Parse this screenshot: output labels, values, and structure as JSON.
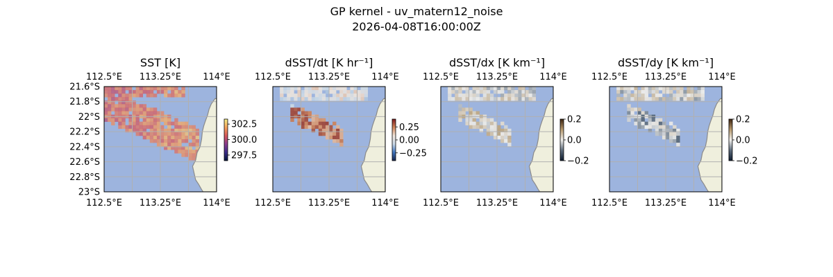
{
  "figure": {
    "suptitle": "GP kernel - uv_matern12_noise",
    "timestamp": "2026-04-08T16:00:00Z"
  },
  "colors": {
    "ocean": "#9db4de",
    "land": "#efefdd",
    "coast": "#8a8a8a",
    "grid": "#b0b0b0"
  },
  "chart_data": [
    {
      "type": "heatmap",
      "title": "SST [K]",
      "x_ticks": [
        "112.5°E",
        "113.25°E",
        "114°E"
      ],
      "x_values": [
        112.5,
        113.25,
        114.0
      ],
      "y_ticks": [
        "21.6°S",
        "21.8°S",
        "22°S",
        "22.2°S",
        "22.4°S",
        "22.6°S",
        "22.8°S",
        "23°S"
      ],
      "y_values": [
        -21.6,
        -21.8,
        -22.0,
        -22.2,
        -22.4,
        -22.6,
        -22.8,
        -23.0
      ],
      "xlim": [
        112.5,
        114.0
      ],
      "ylim": [
        -23.0,
        -21.6
      ],
      "colorbar": {
        "ticks": [
          "302.5",
          "300.0",
          "297.5"
        ],
        "values": [
          302.5,
          300.0,
          297.5
        ],
        "range": [
          296.6,
          303.3
        ],
        "cmap": "thermal"
      },
      "lat_labels_visible": true,
      "grid": true
    },
    {
      "type": "heatmap",
      "title": "dSST/dt [K hr⁻¹]",
      "x_ticks": [
        "112.5°E",
        "113.25°E",
        "114°E"
      ],
      "x_values": [
        112.5,
        113.25,
        114.0
      ],
      "xlim": [
        112.5,
        114.0
      ],
      "ylim": [
        -23.0,
        -21.6
      ],
      "colorbar": {
        "ticks": [
          "0.25",
          "0.00",
          "−0.25"
        ],
        "values": [
          0.25,
          0.0,
          -0.25
        ],
        "range": [
          -0.4,
          0.4
        ],
        "cmap": "balance"
      },
      "lat_labels_visible": false,
      "grid": true
    },
    {
      "type": "heatmap",
      "title": "dSST/dx [K km⁻¹]",
      "x_ticks": [
        "112.5°E",
        "113.25°E",
        "114°E"
      ],
      "x_values": [
        112.5,
        113.25,
        114.0
      ],
      "xlim": [
        112.5,
        114.0
      ],
      "ylim": [
        -23.0,
        -21.6
      ],
      "colorbar": {
        "ticks": [
          "0.2",
          "0.0",
          "−0.2"
        ],
        "values": [
          0.2,
          0.0,
          -0.2
        ],
        "range": [
          -0.2,
          0.2
        ],
        "cmap": "diff"
      },
      "lat_labels_visible": false,
      "grid": true
    },
    {
      "type": "heatmap",
      "title": "dSST/dy [K km⁻¹]",
      "x_ticks": [
        "112.5°E",
        "113.25°E",
        "114°E"
      ],
      "x_values": [
        112.5,
        113.25,
        114.0
      ],
      "xlim": [
        112.5,
        114.0
      ],
      "ylim": [
        -23.0,
        -21.6
      ],
      "colorbar": {
        "ticks": [
          "0.2",
          "0.0",
          "−0.2"
        ],
        "values": [
          0.2,
          0.0,
          -0.2
        ],
        "range": [
          -0.2,
          0.2
        ],
        "cmap": "diff"
      },
      "lat_labels_visible": false,
      "grid": true
    }
  ]
}
